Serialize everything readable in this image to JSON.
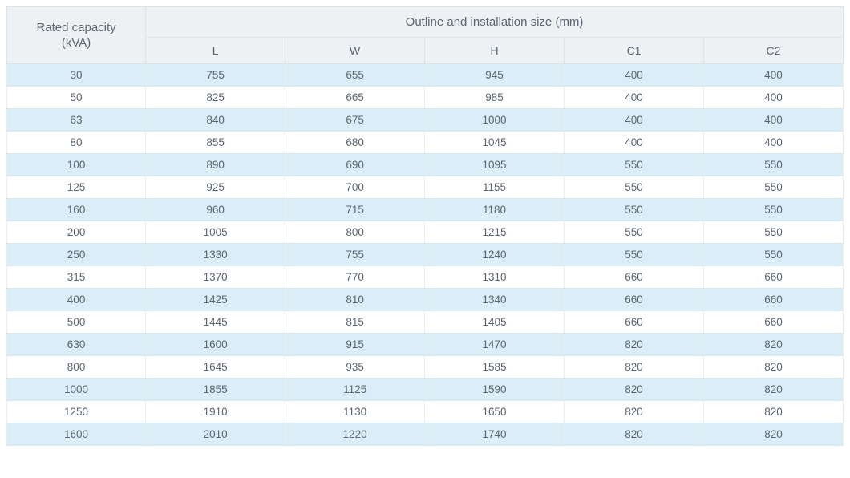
{
  "table": {
    "header": {
      "rated_capacity_line1": "Rated capacity",
      "rated_capacity_line2": "(kVA)",
      "outline_title": "Outline and installation size (mm)",
      "cols": [
        "L",
        "W",
        "H",
        "C1",
        "C2"
      ]
    },
    "columns": [
      "capacity",
      "L",
      "W",
      "H",
      "C1",
      "C2"
    ],
    "rows": [
      [
        "30",
        "755",
        "655",
        "945",
        "400",
        "400"
      ],
      [
        "50",
        "825",
        "665",
        "985",
        "400",
        "400"
      ],
      [
        "63",
        "840",
        "675",
        "1000",
        "400",
        "400"
      ],
      [
        "80",
        "855",
        "680",
        "1045",
        "400",
        "400"
      ],
      [
        "100",
        "890",
        "690",
        "1095",
        "550",
        "550"
      ],
      [
        "125",
        "925",
        "700",
        "1155",
        "550",
        "550"
      ],
      [
        "160",
        "960",
        "715",
        "1180",
        "550",
        "550"
      ],
      [
        "200",
        "1005",
        "800",
        "1215",
        "550",
        "550"
      ],
      [
        "250",
        "1330",
        "755",
        "1240",
        "550",
        "550"
      ],
      [
        "315",
        "1370",
        "770",
        "1310",
        "660",
        "660"
      ],
      [
        "400",
        "1425",
        "810",
        "1340",
        "660",
        "660"
      ],
      [
        "500",
        "1445",
        "815",
        "1405",
        "660",
        "660"
      ],
      [
        "630",
        "1600",
        "915",
        "1470",
        "820",
        "820"
      ],
      [
        "800",
        "1645",
        "935",
        "1585",
        "820",
        "820"
      ],
      [
        "1000",
        "1855",
        "1125",
        "1590",
        "820",
        "820"
      ],
      [
        "1250",
        "1910",
        "1130",
        "1650",
        "820",
        "820"
      ],
      [
        "1600",
        "2010",
        "1220",
        "1740",
        "820",
        "820"
      ]
    ],
    "style": {
      "header_bg": "#eef1f4",
      "header_text": "#5a6570",
      "row_odd_bg": "#dbeef7",
      "row_even_bg": "#ffffff",
      "cell_text": "#5a6570",
      "border_color": "#dfe3e7",
      "row_border": "#d9e6ee",
      "header_fontsize_pt": 11,
      "body_fontsize_pt": 10
    }
  }
}
